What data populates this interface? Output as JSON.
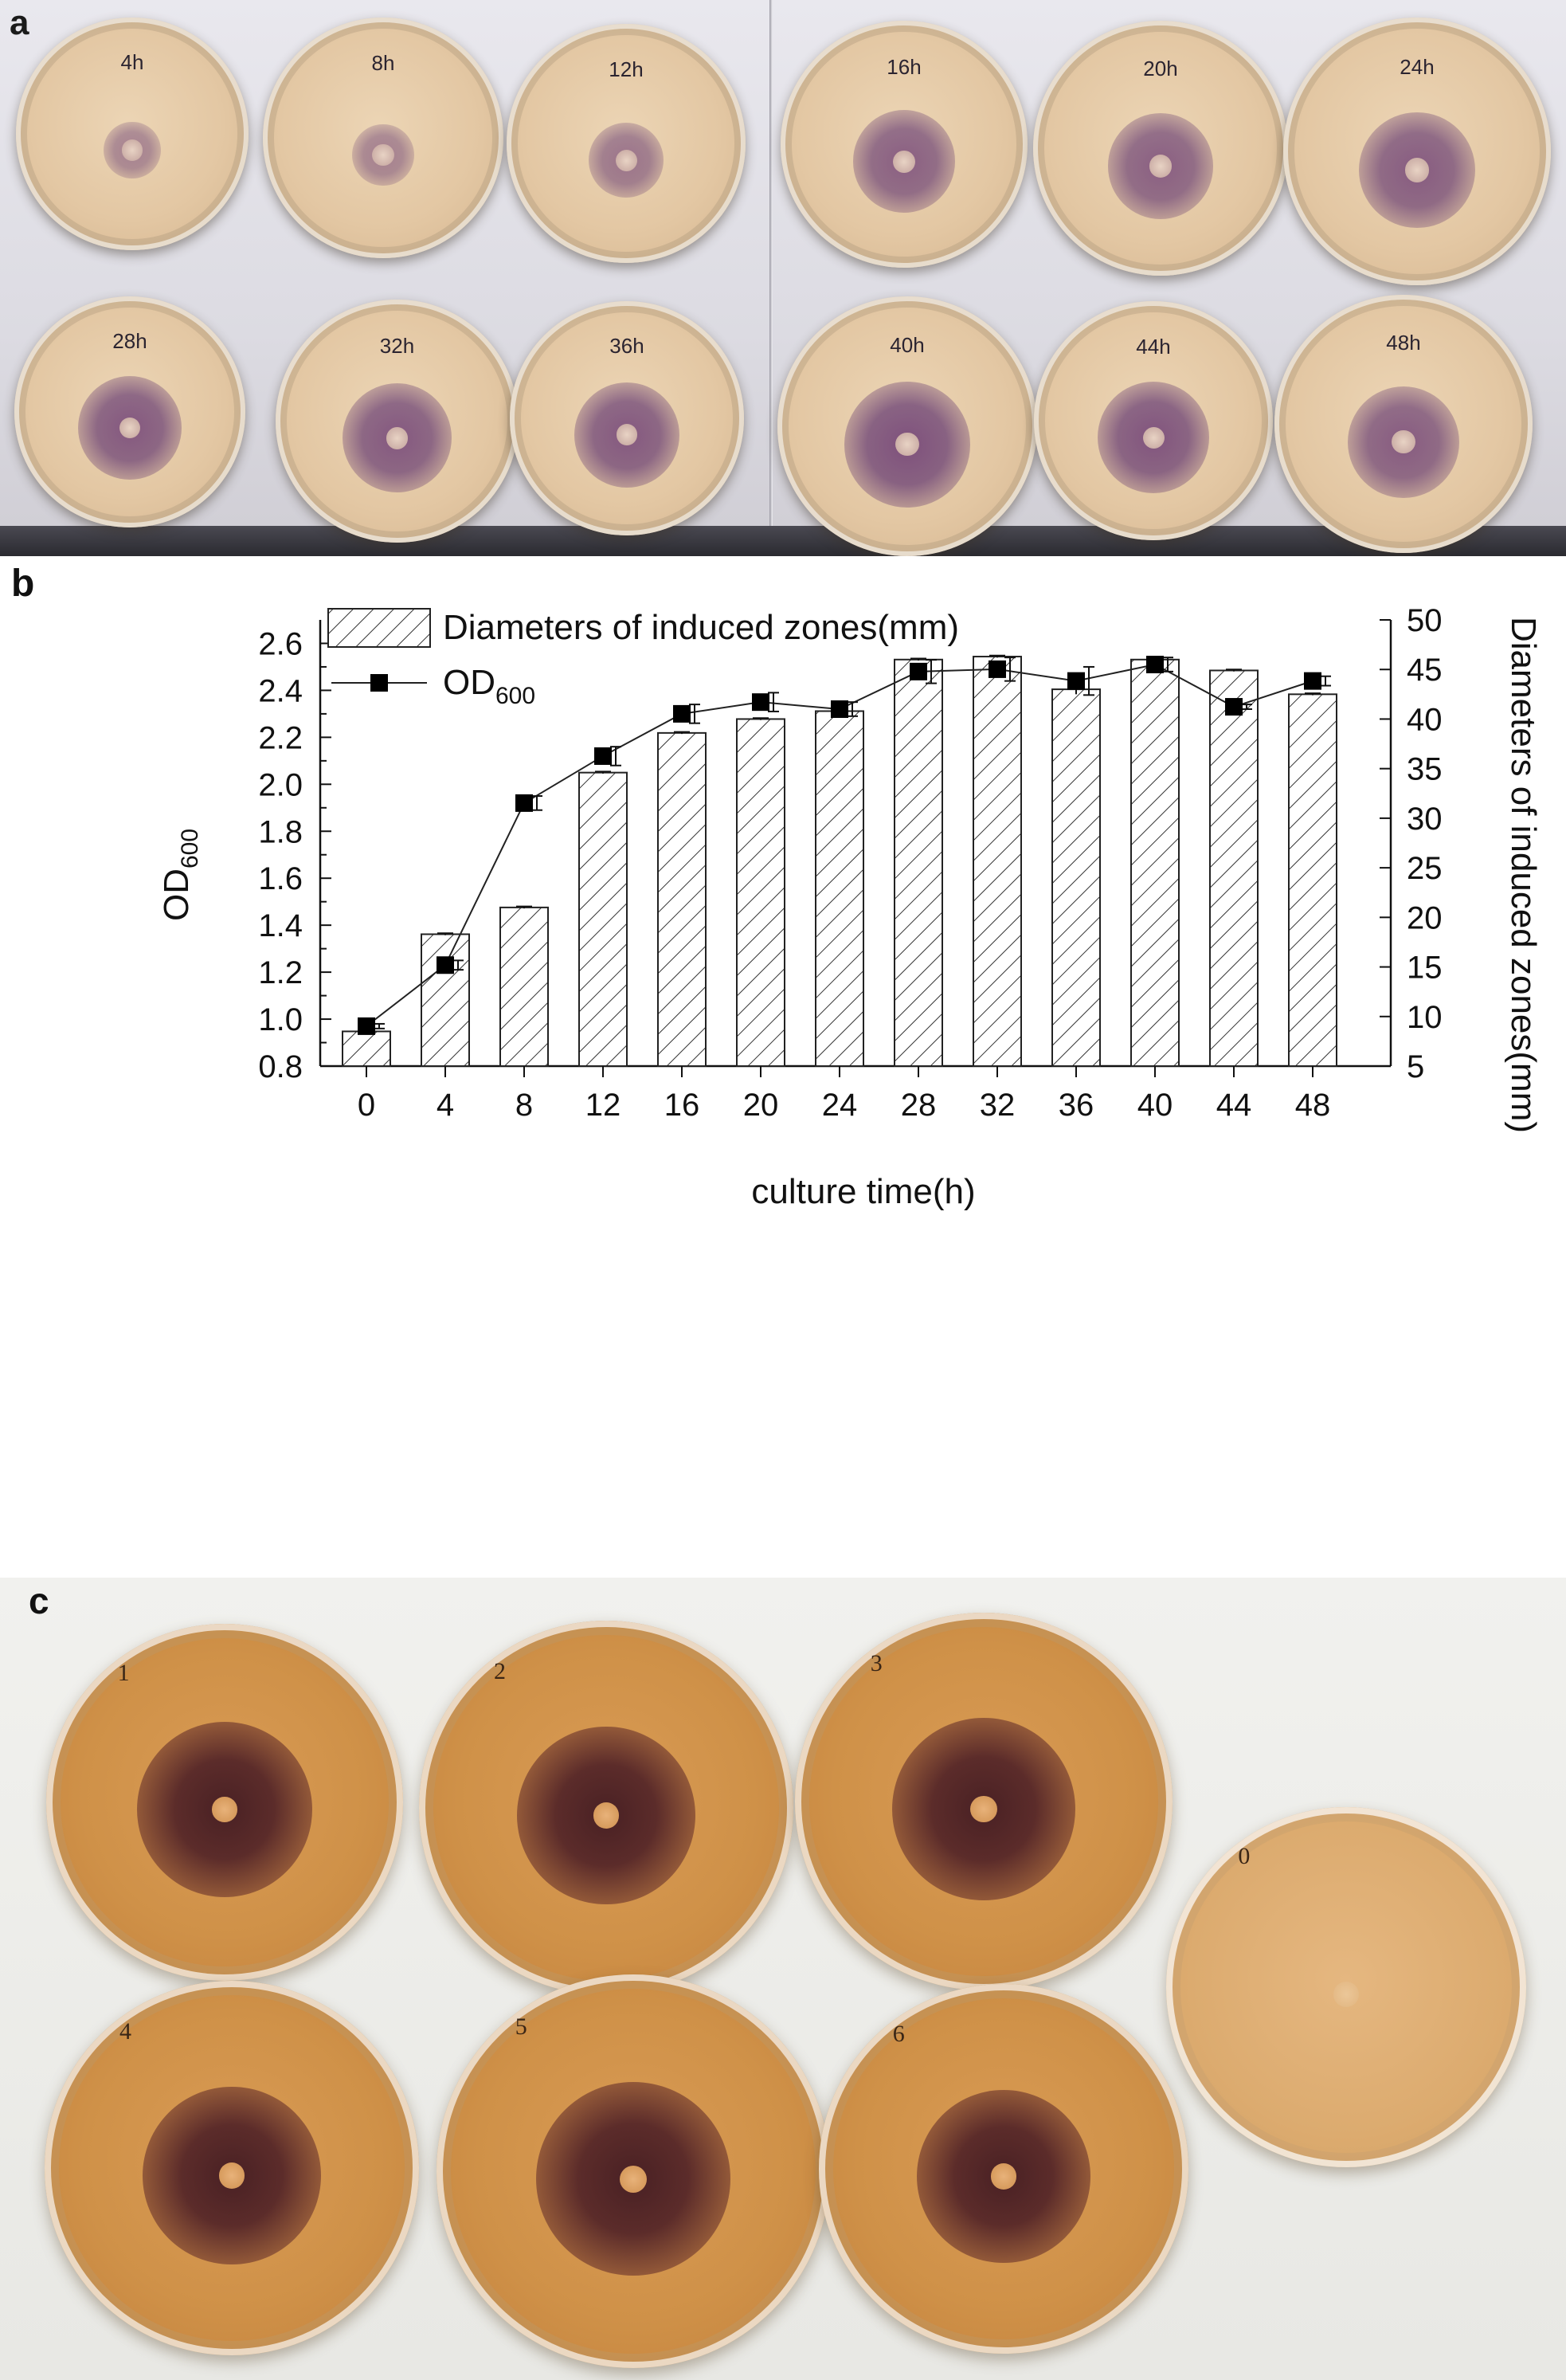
{
  "panel_a": {
    "letter": "a",
    "plates": [
      {
        "label": "4h",
        "intensity": 0.25
      },
      {
        "label": "8h",
        "intensity": 0.28
      },
      {
        "label": "12h",
        "intensity": 0.45
      },
      {
        "label": "16h",
        "intensity": 0.75
      },
      {
        "label": "20h",
        "intensity": 0.75
      },
      {
        "label": "24h",
        "intensity": 0.8
      },
      {
        "label": "28h",
        "intensity": 0.85
      },
      {
        "label": "32h",
        "intensity": 0.85
      },
      {
        "label": "36h",
        "intensity": 0.85
      },
      {
        "label": "40h",
        "intensity": 0.95
      },
      {
        "label": "44h",
        "intensity": 0.9
      },
      {
        "label": "48h",
        "intensity": 0.8
      }
    ]
  },
  "panel_b": {
    "letter": "b"
  },
  "chart_data": {
    "type": "bar",
    "xlabel": "culture time(h)",
    "ylabel": "OD600",
    "y2label": "Diameters of induced zones(mm)",
    "categories": [
      "0",
      "4",
      "8",
      "12",
      "16",
      "20",
      "24",
      "28",
      "32",
      "36",
      "40",
      "44",
      "48"
    ],
    "ylim": [
      0.8,
      2.7
    ],
    "y_ticks": [
      "0.8",
      "1.0",
      "1.2",
      "1.4",
      "1.6",
      "1.8",
      "2.0",
      "2.2",
      "2.4",
      "2.6"
    ],
    "y2lim": [
      5,
      50
    ],
    "y2_ticks": [
      "5",
      "10",
      "15",
      "20",
      "25",
      "30",
      "35",
      "40",
      "45",
      "50"
    ],
    "legend": {
      "bar_label": "Diameters of induced zones(mm)",
      "line_label_main": "OD",
      "line_label_sub": "600",
      "position": "top-left"
    },
    "series": [
      {
        "name": "Diameters of induced zones(mm)",
        "kind": "bar",
        "axis": "right",
        "values": [
          8.5,
          18.3,
          21.0,
          34.6,
          38.6,
          40.0,
          40.8,
          46.0,
          46.3,
          43.0,
          46.0,
          44.9,
          42.5
        ],
        "errors": [
          0.1,
          0.1,
          0.1,
          0.1,
          0.1,
          0.1,
          0.1,
          0.1,
          0.1,
          0.5,
          0.1,
          0.1,
          0.1
        ]
      },
      {
        "name": "OD600",
        "kind": "line",
        "axis": "left",
        "values": [
          0.97,
          1.23,
          1.92,
          2.12,
          2.3,
          2.35,
          2.32,
          2.48,
          2.49,
          2.44,
          2.51,
          2.33,
          2.44
        ],
        "errors": [
          0.01,
          0.02,
          0.03,
          0.04,
          0.04,
          0.04,
          0.03,
          0.05,
          0.05,
          0.06,
          0.03,
          0.01,
          0.02
        ]
      }
    ]
  },
  "panel_c": {
    "letter": "c",
    "plates": [
      {
        "label": "1",
        "intensity": 0.95
      },
      {
        "label": "2",
        "intensity": 0.85
      },
      {
        "label": "3",
        "intensity": 0.9
      },
      {
        "label": "0",
        "intensity": 0
      },
      {
        "label": "4",
        "intensity": 0.85
      },
      {
        "label": "5",
        "intensity": 0.95
      },
      {
        "label": "6",
        "intensity": 0.8
      }
    ]
  }
}
